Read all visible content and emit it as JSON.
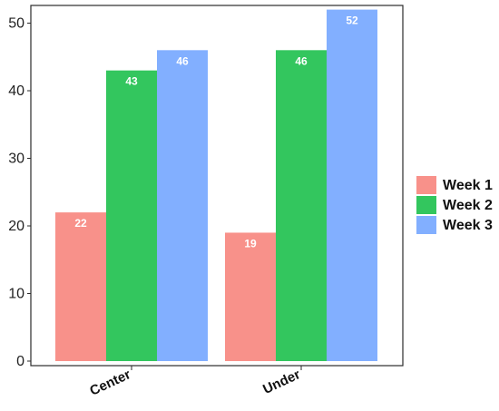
{
  "chart_data": {
    "type": "bar",
    "categories": [
      "Center",
      "Under"
    ],
    "series": [
      {
        "name": "Week 1",
        "values": [
          22,
          19
        ],
        "color": "#F8918A"
      },
      {
        "name": "Week 2",
        "values": [
          43,
          46
        ],
        "color": "#33C65E"
      },
      {
        "name": "Week 3",
        "values": [
          46,
          52
        ],
        "color": "#82AFFF"
      }
    ],
    "yticks": [
      0,
      10,
      20,
      30,
      40,
      50
    ],
    "ylim": [
      0,
      53
    ],
    "grid": false,
    "legend_position": "right",
    "show_value_labels": true
  }
}
